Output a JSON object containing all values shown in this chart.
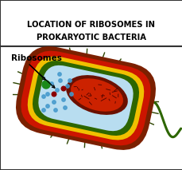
{
  "title_line1": "LOCATION OF RIBOSOMES IN",
  "title_line2": "PROKARYOTIC BACTERIA",
  "label": "Ribosomes",
  "bg_color": "#ffffff",
  "border_color": "#333333",
  "brown_outer": "#7B2000",
  "red_layer": "#cc1500",
  "yellow_layer": "#f0c000",
  "green_layer": "#2d6600",
  "cytoplasm": "#b8ddf0",
  "nucleoid_dark": "#6b1000",
  "nucleoid_mid": "#cc2200",
  "flagellum_color": "#2d6600",
  "pili_color": "#2d4400",
  "ribosome_big": "#1a8a1a",
  "ribosome_small": "#4499cc",
  "dark_dot": "#8B0000",
  "title_fontsize": 7.2,
  "label_fontsize": 7.5
}
